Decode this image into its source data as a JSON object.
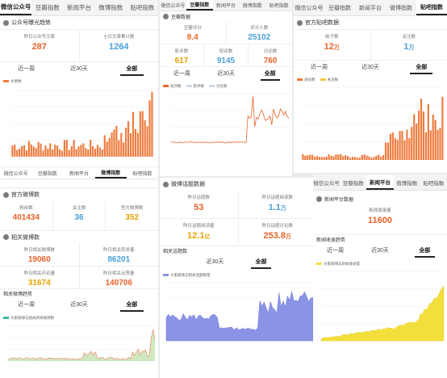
{
  "panelA": {
    "tabs": [
      "微信公众号",
      "豆瓣指数",
      "新闻平台",
      "微博指数",
      "贴吧指数"
    ],
    "active_tab": 0,
    "section_title": "公众号曝光趋势",
    "stats": [
      {
        "label": "昨日公众号文章",
        "value": "287"
      },
      {
        "label": "七日文章累计数",
        "value": "1264"
      }
    ],
    "ranges": [
      "近一周",
      "近30天",
      "全部"
    ],
    "active_range": 2,
    "legend": "文章数"
  },
  "panelA2": {
    "tabs": [
      "微信公众号",
      "豆瓣指数",
      "新闻平台",
      "微博指数",
      "贴吧指数"
    ],
    "active_tab": 3,
    "weibo_title": "官方微博数",
    "weibo_stats": [
      {
        "label": "粉丝数",
        "value": "401434"
      },
      {
        "label": "关注数",
        "value": "36"
      },
      {
        "label": "官方微博数",
        "value": "352"
      }
    ],
    "related_title": "相关微博数",
    "related_stats": [
      {
        "label": "昨日相关微博数",
        "value": "19060"
      },
      {
        "label": "昨日相关转发量",
        "value": "86201"
      },
      {
        "label": "昨日相关评论量",
        "value": "31674"
      },
      {
        "label": "昨日相关点赞量",
        "value": "140706"
      }
    ],
    "trend_title": "相关微博趋势",
    "ranges": [
      "近一周",
      "近30天",
      "全部"
    ],
    "active_range": 2,
    "legend": "大家微博与相关新闻微博数"
  },
  "panelB": {
    "tabs": [
      "微信公众号",
      "豆瓣指数",
      "新闻平台",
      "微博指数",
      "贴吧指数"
    ],
    "active_tab": 1,
    "section_title": "豆瓣数据",
    "stats": [
      {
        "label": "豆瓣评分",
        "value": "8.4"
      },
      {
        "label": "评分人数",
        "value": "25102"
      },
      {
        "label": "影评数",
        "value": "617"
      },
      {
        "label": "短评数",
        "value": "9145"
      },
      {
        "label": "讨论数",
        "value": "760"
      }
    ],
    "ranges": [
      "近一周",
      "近30天",
      "全部"
    ],
    "active_range": 2,
    "legend": [
      "短评数",
      "影评数",
      "讨论数"
    ]
  },
  "panelB2": {
    "section_title": "微博话题数据",
    "stats": [
      {
        "label": "昨日话题数",
        "value": "53"
      },
      {
        "label": "昨日话题阅读数",
        "value": "1.1",
        "unit": "万"
      },
      {
        "label": "昨日话题阅读量",
        "value": "12.1",
        "unit": "亿"
      },
      {
        "label": "昨日话题讨论数",
        "value": "253.8",
        "unit": "万"
      }
    ],
    "trend_title": "相关话题数",
    "ranges": [
      "近30天",
      "全部"
    ],
    "active_range": 1,
    "legend": "大家微博与相关话题数量"
  },
  "panelC": {
    "tabs": [
      "微信公众号",
      "豆瓣指数",
      "新闻平台",
      "微博指数",
      "贴吧指数"
    ],
    "active_tab": 4,
    "section_title": "官方贴吧数据",
    "stats": [
      {
        "label": "帖子数",
        "value": "12",
        "unit": "万"
      },
      {
        "label": "关注数",
        "value": "1",
        "unit": "万"
      }
    ],
    "ranges": [
      "近一周",
      "近30天",
      "全部"
    ],
    "active_range": 2,
    "legend": [
      "发帖数",
      "关注数"
    ]
  },
  "panelC2": {
    "tabs": [
      "微信公众号",
      "豆瓣指数",
      "新闻平台",
      "微博指数",
      "贴吧指数"
    ],
    "active_tab": 2,
    "section_title": "新闻平台数据",
    "stats": [
      {
        "label": "新闻收录量",
        "value": "11600"
      }
    ],
    "trend_title": "新闻收录趋势",
    "ranges": [
      "近一周",
      "近30天",
      "全部"
    ],
    "active_range": 2,
    "legend": "大家微博与新闻收录量"
  },
  "colors": {
    "orange": "#e8632b",
    "blue": "#4a9fd8",
    "gold": "#e6a100",
    "bar_orange": "#ee7a3c",
    "area_green": "#cfe8c0",
    "area_blue": "#8b93e6",
    "area_yellow": "#f3df3c"
  }
}
